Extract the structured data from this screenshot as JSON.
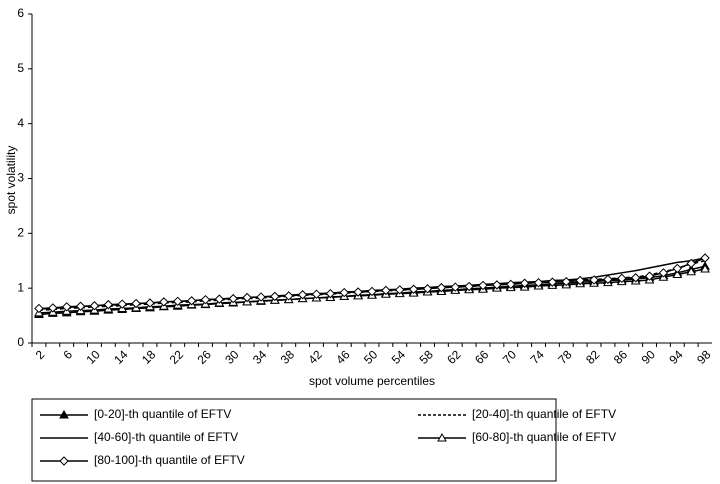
{
  "chart_data": {
    "type": "line",
    "ylabel": "spot volatility",
    "xlabel": "spot volume percentiles",
    "categories": [
      "2",
      null,
      "6",
      null,
      "10",
      null,
      "14",
      null,
      "18",
      null,
      "22",
      null,
      "26",
      null,
      "30",
      null,
      "34",
      null,
      "38",
      null,
      "42",
      null,
      "46",
      null,
      "50",
      null,
      "54",
      null,
      "58",
      null,
      "62",
      null,
      "66",
      null,
      "70",
      null,
      "74",
      null,
      "78",
      null,
      "82",
      null,
      "86",
      null,
      "90",
      null,
      "94",
      null,
      "98"
    ],
    "ylim": [
      0,
      6
    ],
    "yticks": [
      0,
      1,
      2,
      3,
      4,
      5,
      6
    ],
    "grid": false,
    "series": [
      {
        "name": "[0-20]-th quantile of EFTV",
        "color": "#000000",
        "marker": "triangle",
        "dash": false,
        "values": [
          0.52,
          0.54,
          0.55,
          0.57,
          0.58,
          0.6,
          0.61,
          0.63,
          0.64,
          0.66,
          0.67,
          0.69,
          0.7,
          0.72,
          0.73,
          0.75,
          0.76,
          0.78,
          0.79,
          0.81,
          0.82,
          0.84,
          0.85,
          0.87,
          0.88,
          0.9,
          0.91,
          0.93,
          0.94,
          0.96,
          0.97,
          0.99,
          1.0,
          1.02,
          1.03,
          1.05,
          1.06,
          1.08,
          1.09,
          1.11,
          1.12,
          1.14,
          1.15,
          1.17,
          1.19,
          1.23,
          1.28,
          1.34,
          1.4
        ]
      },
      {
        "name": "[20-40]-th quantile of EFTV",
        "color": "#000000",
        "marker": "none",
        "dash": true,
        "values": [
          0.6,
          0.61,
          0.63,
          0.64,
          0.66,
          0.67,
          0.68,
          0.7,
          0.71,
          0.73,
          0.74,
          0.75,
          0.77,
          0.78,
          0.8,
          0.81,
          0.82,
          0.84,
          0.85,
          0.87,
          0.88,
          0.89,
          0.91,
          0.92,
          0.94,
          0.95,
          0.96,
          0.98,
          0.99,
          1.01,
          1.02,
          1.03,
          1.05,
          1.06,
          1.08,
          1.09,
          1.1,
          1.12,
          1.13,
          1.15,
          1.16,
          1.17,
          1.19,
          1.2,
          1.24,
          1.3,
          1.36,
          1.44,
          1.5
        ]
      },
      {
        "name": "[40-60]-th quantile of EFTV",
        "color": "#000000",
        "marker": "none",
        "dash": false,
        "values": [
          0.62,
          0.63,
          0.65,
          0.66,
          0.68,
          0.69,
          0.7,
          0.72,
          0.73,
          0.75,
          0.76,
          0.77,
          0.79,
          0.8,
          0.82,
          0.83,
          0.84,
          0.86,
          0.87,
          0.89,
          0.9,
          0.91,
          0.93,
          0.94,
          0.96,
          0.97,
          0.98,
          1.0,
          1.01,
          1.03,
          1.04,
          1.05,
          1.07,
          1.08,
          1.1,
          1.11,
          1.12,
          1.14,
          1.15,
          1.17,
          1.2,
          1.24,
          1.28,
          1.32,
          1.37,
          1.42,
          1.47,
          1.5,
          1.55
        ]
      },
      {
        "name": "[60-80]-th quantile of EFTV",
        "color": "#000000",
        "marker": "triangle-open",
        "dash": false,
        "values": [
          0.55,
          0.56,
          0.58,
          0.59,
          0.6,
          0.62,
          0.63,
          0.64,
          0.66,
          0.67,
          0.69,
          0.7,
          0.71,
          0.73,
          0.74,
          0.75,
          0.77,
          0.78,
          0.79,
          0.81,
          0.82,
          0.83,
          0.85,
          0.86,
          0.87,
          0.89,
          0.9,
          0.91,
          0.93,
          0.94,
          0.96,
          0.97,
          0.98,
          1.0,
          1.01,
          1.02,
          1.04,
          1.05,
          1.06,
          1.08,
          1.09,
          1.1,
          1.12,
          1.13,
          1.15,
          1.2,
          1.25,
          1.3,
          1.35
        ]
      },
      {
        "name": "[80-100]-th quantile of EFTV",
        "color": "#000000",
        "marker": "diamond",
        "dash": false,
        "values": [
          0.63,
          0.64,
          0.66,
          0.67,
          0.68,
          0.7,
          0.71,
          0.72,
          0.73,
          0.75,
          0.76,
          0.77,
          0.79,
          0.8,
          0.81,
          0.83,
          0.84,
          0.85,
          0.86,
          0.88,
          0.89,
          0.9,
          0.92,
          0.93,
          0.94,
          0.96,
          0.97,
          0.98,
          0.99,
          1.01,
          1.02,
          1.03,
          1.05,
          1.06,
          1.07,
          1.09,
          1.1,
          1.11,
          1.12,
          1.14,
          1.15,
          1.16,
          1.18,
          1.19,
          1.22,
          1.28,
          1.36,
          1.45,
          1.55
        ]
      }
    ]
  }
}
